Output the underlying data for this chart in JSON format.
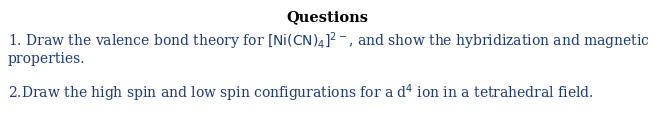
{
  "title": "Questions",
  "title_fontsize": 10.5,
  "line1": "1. Draw the valence bond theory for $[\\mathrm{Ni(CN)_4}]^{2-}$, and show the hybridization and magnetic",
  "line2": "properties.",
  "line3": "2.Draw the high spin and low spin configurations for a d$^{4}$ ion in a tetrahedral field.",
  "text_color": "#1a3a7a",
  "background_color": "#ffffff",
  "fontsize": 10.0,
  "title_color": "#000000",
  "fig_width": 6.55,
  "fig_height": 1.3,
  "dpi": 100
}
